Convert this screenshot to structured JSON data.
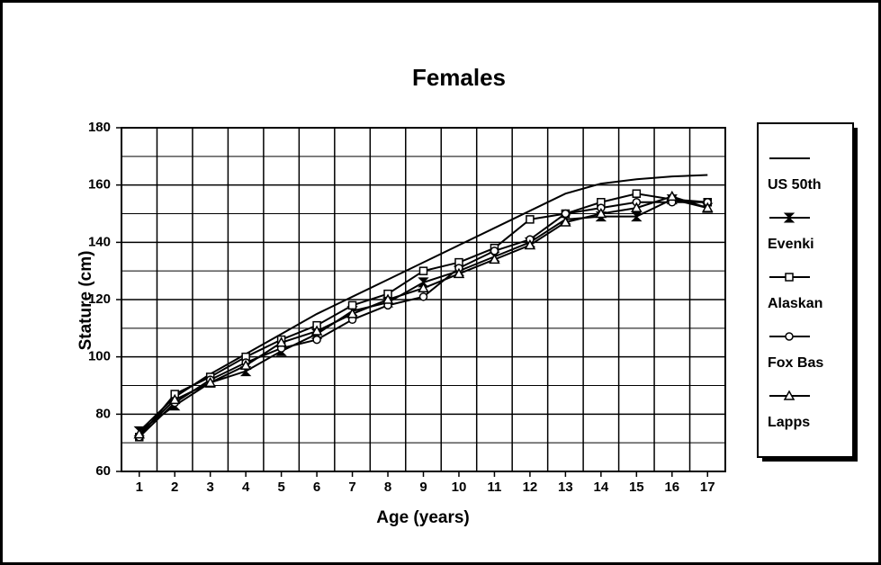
{
  "chart_data": {
    "type": "line",
    "title": "Females",
    "x_label": "Age (years)",
    "y_label": "Stature (cm)",
    "categories": [
      1,
      2,
      3,
      4,
      5,
      6,
      7,
      8,
      9,
      10,
      11,
      12,
      13,
      14,
      15,
      16,
      17
    ],
    "series": [
      {
        "name": "US 50th",
        "color": "#000000",
        "marker": "none",
        "values": [
          74,
          86,
          94,
          101,
          108,
          115,
          121,
          127,
          133,
          139,
          145,
          151,
          157,
          160.5,
          162,
          163,
          163.5
        ]
      },
      {
        "name": "Evenki",
        "color": "#000000",
        "marker": "bowtie",
        "values": [
          74,
          83,
          91,
          95,
          102,
          108,
          116,
          119,
          126,
          130,
          135,
          140,
          148,
          149,
          149,
          155,
          152
        ]
      },
      {
        "name": "Alaskan",
        "color": "#000000",
        "marker": "square",
        "values": [
          72,
          87,
          93,
          100,
          106,
          111,
          118,
          122,
          130,
          133,
          138,
          148,
          150,
          154,
          157,
          155,
          154
        ]
      },
      {
        "name": "Fox Bas",
        "color": "#000000",
        "marker": "circle",
        "values": [
          72,
          84,
          92,
          98,
          103,
          106,
          113,
          118,
          121,
          131,
          137,
          141,
          150,
          152,
          154,
          154,
          154
        ]
      },
      {
        "name": "Lapps",
        "color": "#000000",
        "marker": "triangle",
        "values": [
          73,
          85,
          91,
          97,
          105,
          109,
          115,
          120,
          124,
          129,
          134,
          139,
          147,
          150,
          152,
          156,
          152
        ]
      }
    ],
    "ylim": [
      60,
      180
    ],
    "yticks": [
      60,
      80,
      100,
      120,
      140,
      160,
      180
    ],
    "grid": true,
    "legend": "right"
  }
}
